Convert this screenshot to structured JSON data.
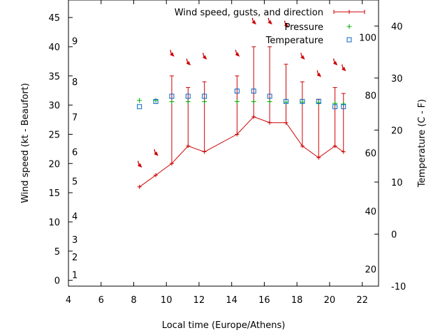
{
  "chart_data": {
    "type": "line",
    "xlabel": "Local time (Europe/Athens)",
    "ylabel": "Wind speed (kt - Beaufort)",
    "y2label": "Temperature (C - F)",
    "xlim": [
      4,
      23
    ],
    "xticks": [
      "4",
      "6",
      "8",
      "10",
      "12",
      "14",
      "16",
      "18",
      "20",
      "22"
    ],
    "ylim": [
      -1,
      48
    ],
    "yticks": [
      "0",
      "5",
      "10",
      "15",
      "20",
      "25",
      "30",
      "35",
      "40",
      "45"
    ],
    "beaufort_labels": [
      {
        "label": "1",
        "y": 1
      },
      {
        "label": "2",
        "y": 4
      },
      {
        "label": "3",
        "y": 7
      },
      {
        "label": "4",
        "y": 11
      },
      {
        "label": "5",
        "y": 17
      },
      {
        "label": "6",
        "y": 22
      },
      {
        "label": "7",
        "y": 28
      },
      {
        "label": "8",
        "y": 34
      },
      {
        "label": "9",
        "y": 41
      }
    ],
    "y2lim": [
      -10,
      45
    ],
    "y2ticks": [
      "-10",
      "0",
      "10",
      "20",
      "30",
      "40"
    ],
    "fahrenheit_labels": [
      {
        "label": "20",
        "y2": -6.7
      },
      {
        "label": "40",
        "y2": 4.4
      },
      {
        "label": "60",
        "y2": 15.6
      },
      {
        "label": "80",
        "y2": 26.7
      },
      {
        "label": "100",
        "y2": 37.8
      }
    ],
    "legend": [
      {
        "name": "Wind speed, gusts, and direction",
        "color": "#cc0000",
        "style": "errorline"
      },
      {
        "name": "Pressure",
        "color": "#00aa00",
        "style": "plus"
      },
      {
        "name": "Temperature",
        "color": "#0066cc",
        "style": "square"
      }
    ],
    "legend_position": "top-right",
    "series": [
      {
        "name": "Wind speed, gusts, and direction",
        "x": [
          8.35,
          9.35,
          10.33,
          11.33,
          12.33,
          14.33,
          15.35,
          16.33,
          17.33,
          18.33,
          19.33,
          20.33,
          20.85
        ],
        "values": [
          16,
          18,
          20,
          23,
          22,
          25,
          28,
          27,
          27,
          23,
          21,
          23,
          22
        ],
        "gusts": [
          null,
          null,
          35,
          33,
          34,
          35,
          40,
          40,
          37,
          34,
          31,
          33,
          32
        ],
        "direction_arrows_y": [
          19.5,
          21.5,
          38.5,
          37,
          38,
          38.5,
          44,
          44,
          43.5,
          38,
          35,
          37,
          36
        ]
      },
      {
        "name": "Pressure",
        "x": [
          8.35,
          9.35,
          10.33,
          11.33,
          12.33,
          14.33,
          15.35,
          16.33,
          17.33,
          18.33,
          19.33,
          20.33,
          20.85
        ],
        "values": [
          30.8,
          30.8,
          30.6,
          30.6,
          30.6,
          30.6,
          30.6,
          30.6,
          30.5,
          30.5,
          30.4,
          30.3,
          30.2
        ]
      },
      {
        "name": "Temperature",
        "x": [
          8.35,
          9.35,
          10.33,
          11.33,
          12.33,
          14.33,
          15.35,
          16.33,
          17.33,
          18.33,
          19.33,
          20.33,
          20.85
        ],
        "values_y2": [
          24.5,
          25.5,
          26.5,
          26.5,
          26.5,
          27.5,
          27.5,
          26.5,
          25.5,
          25.5,
          25.5,
          24.5,
          24.5
        ]
      }
    ]
  }
}
